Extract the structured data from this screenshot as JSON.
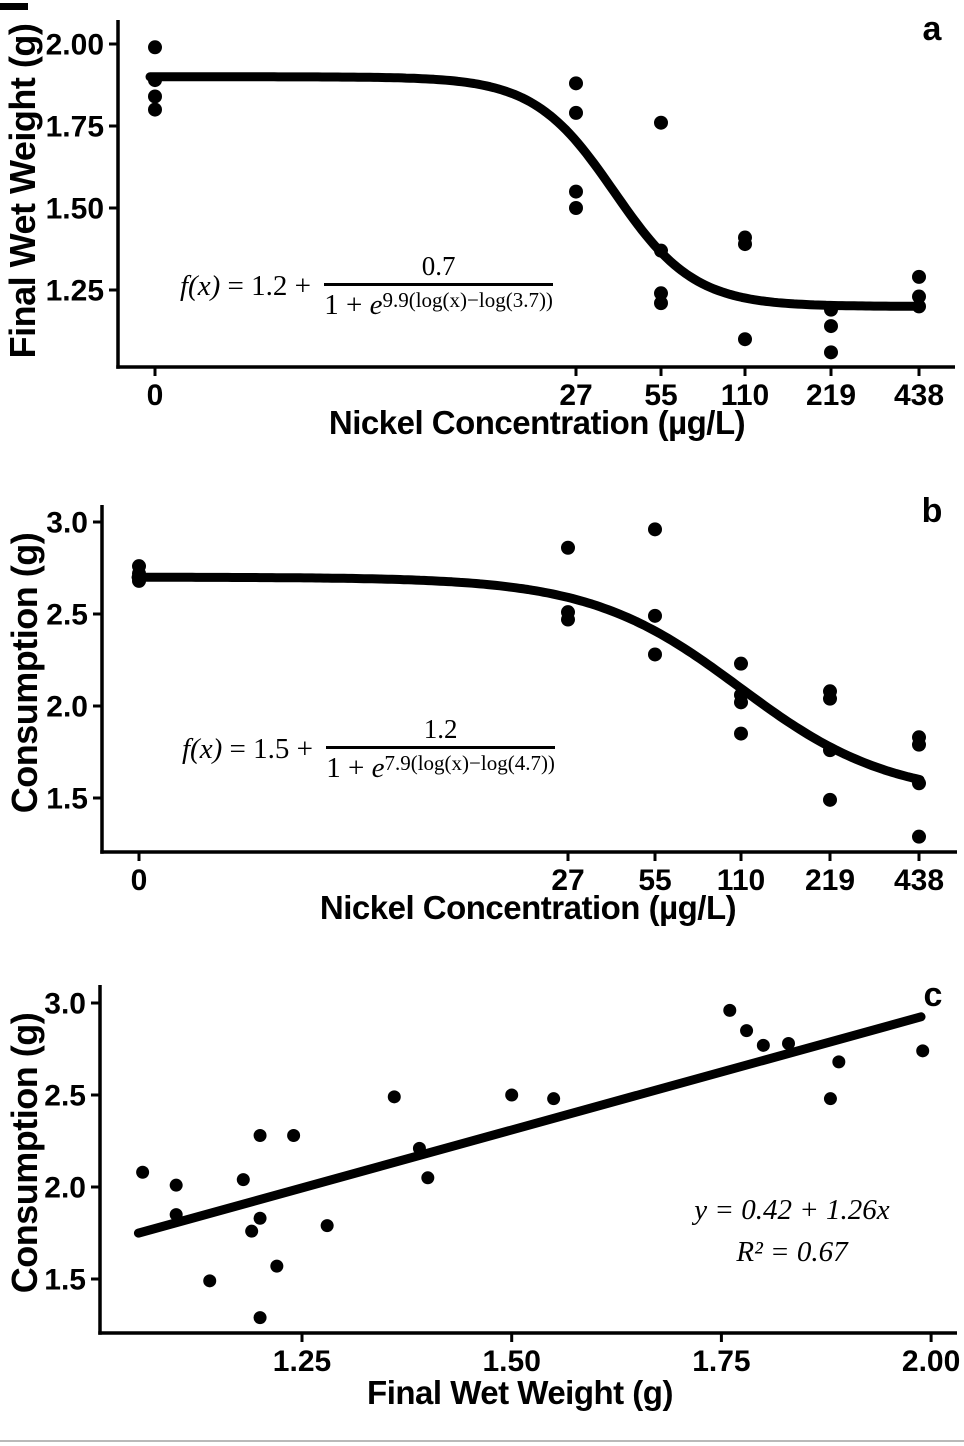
{
  "figure": {
    "panels": [
      {
        "letter": "a",
        "xlabel": "Nickel Concentration (µg/L)",
        "ylabel": "Final Wet Weight (g)",
        "equation": {
          "lhs_italic": "f(x)",
          "lhs_rest": " = 1.2 + ",
          "numerator": "0.7",
          "denom_pre": "1 + ",
          "denom_var": "e",
          "denom_exp": "9.9(log(x)−log(3.7))"
        }
      },
      {
        "letter": "b",
        "xlabel": "Nickel Concentration (µg/L)",
        "ylabel": "Consumption (g)",
        "equation": {
          "lhs_italic": "f(x)",
          "lhs_rest": " = 1.5 + ",
          "numerator": "1.2",
          "denom_pre": "1 + ",
          "denom_var": "e",
          "denom_exp": "7.9(log(x)−log(4.7))"
        }
      },
      {
        "letter": "c",
        "xlabel": "Final Wet Weight (g)",
        "ylabel": "Consumption (g)",
        "annotation": {
          "line1": "y = 0.42 + 1.26x",
          "line2": "R² = 0.67"
        }
      }
    ]
  },
  "colors": {
    "foreground": "#000000",
    "background": "#ffffff"
  },
  "chart_data": [
    {
      "id": "a",
      "type": "scatter",
      "title": "",
      "xlabel": "Nickel Concentration (µg/L)",
      "ylabel": "Final Wet Weight (g)",
      "x_axis": {
        "ticks": [
          "0",
          "27",
          "55",
          "110",
          "219",
          "438"
        ],
        "scale": "doubling-spaced concentrations"
      },
      "y_axis": {
        "ticks": [
          "2.00",
          "1.75",
          "1.50",
          "1.25"
        ],
        "range": [
          1.02,
          2.03
        ]
      },
      "points": [
        {
          "x": "0",
          "y": 1.99
        },
        {
          "x": "0",
          "y": 1.89
        },
        {
          "x": "0",
          "y": 1.84
        },
        {
          "x": "0",
          "y": 1.8
        },
        {
          "x": "27",
          "y": 1.88
        },
        {
          "x": "27",
          "y": 1.79
        },
        {
          "x": "27",
          "y": 1.55
        },
        {
          "x": "27",
          "y": 1.5
        },
        {
          "x": "55",
          "y": 1.76
        },
        {
          "x": "55",
          "y": 1.37
        },
        {
          "x": "55",
          "y": 1.24
        },
        {
          "x": "55",
          "y": 1.21
        },
        {
          "x": "110",
          "y": 1.41
        },
        {
          "x": "110",
          "y": 1.39
        },
        {
          "x": "110",
          "y": 1.1
        },
        {
          "x": "219",
          "y": 1.19
        },
        {
          "x": "219",
          "y": 1.14
        },
        {
          "x": "219",
          "y": 1.06
        },
        {
          "x": "438",
          "y": 1.29
        },
        {
          "x": "438",
          "y": 1.23
        },
        {
          "x": "438",
          "y": 1.2
        }
      ],
      "fit": {
        "type": "logistic-decreasing",
        "equation": "f(x) = 1.2 + 0.7/(1 + e^(9.9(log(x)−log(3.7))))",
        "lower_asymptote": 1.2,
        "range": 0.7,
        "slope": 9.9,
        "inflection": 3.7
      },
      "legend": "none",
      "grid": false
    },
    {
      "id": "b",
      "type": "scatter",
      "title": "",
      "xlabel": "Nickel Concentration (µg/L)",
      "ylabel": "Consumption (g)",
      "x_axis": {
        "ticks": [
          "0",
          "27",
          "55",
          "110",
          "219",
          "438"
        ],
        "scale": "doubling-spaced concentrations"
      },
      "y_axis": {
        "ticks": [
          "3.0",
          "2.5",
          "2.0",
          "1.5"
        ],
        "range": [
          1.25,
          3.05
        ]
      },
      "points": [
        {
          "x": "0",
          "y": 2.76
        },
        {
          "x": "0",
          "y": 2.72
        },
        {
          "x": "0",
          "y": 2.68
        },
        {
          "x": "27",
          "y": 2.86
        },
        {
          "x": "27",
          "y": 2.51
        },
        {
          "x": "27",
          "y": 2.47
        },
        {
          "x": "55",
          "y": 2.96
        },
        {
          "x": "55",
          "y": 2.49
        },
        {
          "x": "55",
          "y": 2.28
        },
        {
          "x": "110",
          "y": 2.23
        },
        {
          "x": "110",
          "y": 2.06
        },
        {
          "x": "110",
          "y": 2.02
        },
        {
          "x": "110",
          "y": 1.85
        },
        {
          "x": "219",
          "y": 2.08
        },
        {
          "x": "219",
          "y": 2.04
        },
        {
          "x": "219",
          "y": 1.76
        },
        {
          "x": "219",
          "y": 1.49
        },
        {
          "x": "438",
          "y": 1.83
        },
        {
          "x": "438",
          "y": 1.79
        },
        {
          "x": "438",
          "y": 1.58
        },
        {
          "x": "438",
          "y": 1.29
        }
      ],
      "fit": {
        "type": "logistic-decreasing",
        "equation": "f(x) = 1.5 + 1.2/(1 + e^(7.9(log(x)−log(4.7))))",
        "lower_asymptote": 1.5,
        "range": 1.2,
        "slope": 7.9,
        "inflection": 4.7
      },
      "legend": "none",
      "grid": false
    },
    {
      "id": "c",
      "type": "scatter",
      "title": "",
      "xlabel": "Final Wet Weight (g)",
      "ylabel": "Consumption (g)",
      "x_axis": {
        "ticks": [
          "1.25",
          "1.50",
          "1.75",
          "2.00"
        ],
        "range": [
          1.02,
          2.03
        ]
      },
      "y_axis": {
        "ticks": [
          "3.0",
          "2.5",
          "2.0",
          "1.5"
        ],
        "range": [
          1.25,
          3.05
        ]
      },
      "points": [
        {
          "x": 1.06,
          "y": 2.08
        },
        {
          "x": 1.1,
          "y": 2.01
        },
        {
          "x": 1.1,
          "y": 1.85
        },
        {
          "x": 1.14,
          "y": 1.49
        },
        {
          "x": 1.18,
          "y": 2.04
        },
        {
          "x": 1.19,
          "y": 1.76
        },
        {
          "x": 1.2,
          "y": 2.28
        },
        {
          "x": 1.2,
          "y": 1.83
        },
        {
          "x": 1.2,
          "y": 1.29
        },
        {
          "x": 1.22,
          "y": 1.57
        },
        {
          "x": 1.24,
          "y": 2.28
        },
        {
          "x": 1.28,
          "y": 1.79
        },
        {
          "x": 1.36,
          "y": 2.49
        },
        {
          "x": 1.39,
          "y": 2.21
        },
        {
          "x": 1.4,
          "y": 2.05
        },
        {
          "x": 1.5,
          "y": 2.5
        },
        {
          "x": 1.55,
          "y": 2.48
        },
        {
          "x": 1.76,
          "y": 2.96
        },
        {
          "x": 1.78,
          "y": 2.85
        },
        {
          "x": 1.8,
          "y": 2.77
        },
        {
          "x": 1.83,
          "y": 2.78
        },
        {
          "x": 1.88,
          "y": 2.48
        },
        {
          "x": 1.89,
          "y": 2.68
        },
        {
          "x": 1.99,
          "y": 2.74
        }
      ],
      "fit": {
        "type": "linear",
        "equation": "y = 0.42 + 1.26x",
        "intercept": 0.42,
        "slope": 1.26,
        "r_squared": 0.67,
        "x_start": 1.055,
        "x_end": 1.988
      },
      "legend": "none",
      "grid": false
    }
  ]
}
